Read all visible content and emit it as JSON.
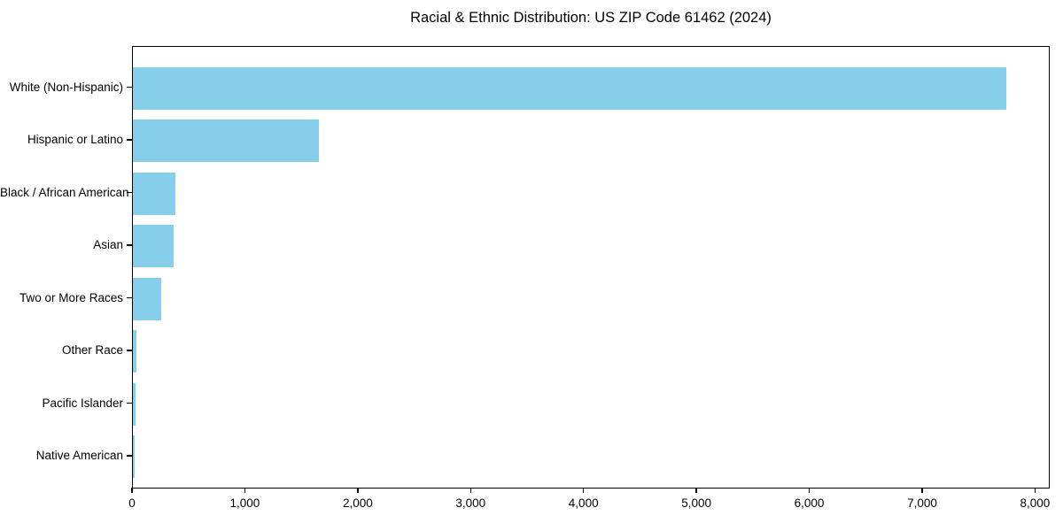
{
  "figure": {
    "background_color": "#ffffff"
  },
  "chart_data": {
    "type": "bar",
    "orientation": "horizontal",
    "title": "Racial & Ethnic Distribution: US ZIP Code 61462 (2024)",
    "categories": [
      "White (Non-Hispanic)",
      "Hispanic or Latino",
      "Black / African American",
      "Asian",
      "Two or More Races",
      "Other Race",
      "Pacific Islander",
      "Native American"
    ],
    "values": [
      7740,
      1650,
      380,
      360,
      250,
      35,
      25,
      13
    ],
    "xlabel": "",
    "ylabel": "",
    "xlim": [
      0,
      8130
    ],
    "x_ticks": [
      {
        "value": 0,
        "label": "0"
      },
      {
        "value": 1000,
        "label": "1,000"
      },
      {
        "value": 2000,
        "label": "2,000"
      },
      {
        "value": 3000,
        "label": "3,000"
      },
      {
        "value": 4000,
        "label": "4,000"
      },
      {
        "value": 5000,
        "label": "5,000"
      },
      {
        "value": 6000,
        "label": "6,000"
      },
      {
        "value": 7000,
        "label": "7,000"
      },
      {
        "value": 8000,
        "label": "8,000"
      }
    ],
    "bar_color": "#87CEEB",
    "axis_color": "#000000",
    "text_color": "#000000",
    "grid": false,
    "legend": false
  }
}
